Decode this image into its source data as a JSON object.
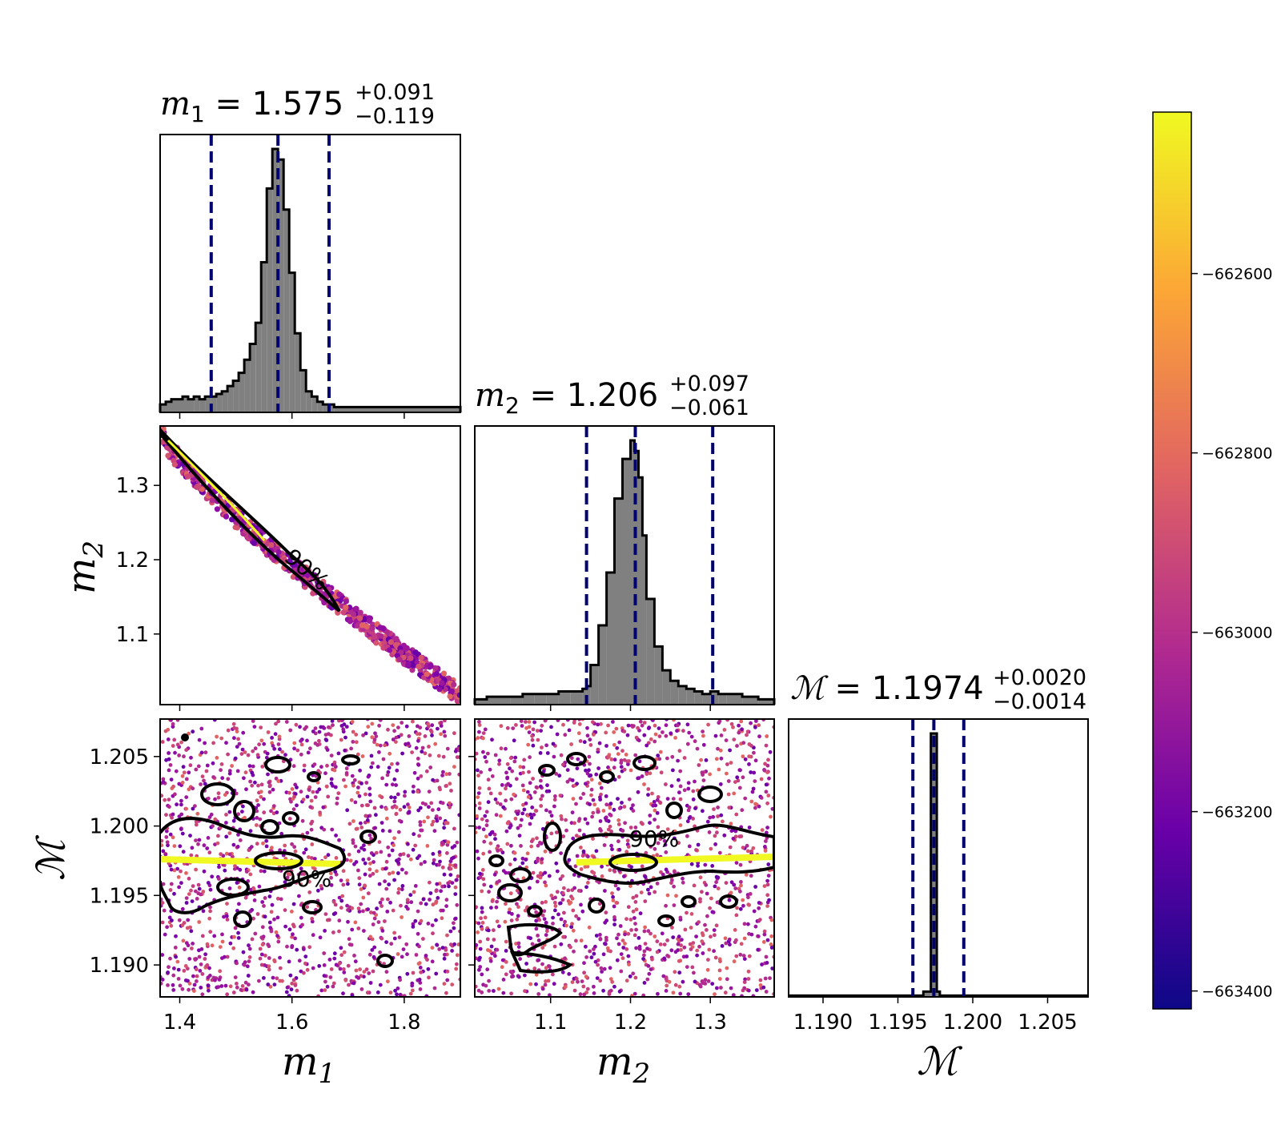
{
  "figure": {
    "colorbar": {
      "tick_labels": [
        "−662600",
        "−662800",
        "−663000",
        "−663200",
        "−663400"
      ],
      "tick_values": [
        -662600,
        -662800,
        -663000,
        -663200,
        -663400
      ],
      "range": [
        -663420,
        -662420
      ],
      "colormap": "plasma",
      "colors": [
        "#0d0887",
        "#6a00a8",
        "#b12a90",
        "#e16462",
        "#fca636",
        "#f0f921"
      ]
    },
    "params": [
      {
        "symbol": "m",
        "sub": "1",
        "median": "1.575",
        "plus": "+0.091",
        "minus": "−0.119",
        "axis_label": "m",
        "axis_sub": "1"
      },
      {
        "symbol": "m",
        "sub": "2",
        "median": "1.206",
        "plus": "+0.097",
        "minus": "−0.061",
        "axis_label": "m",
        "axis_sub": "2"
      },
      {
        "symbol": "ℳ",
        "sub": "",
        "median": "1.1974",
        "plus": "+0.0020",
        "minus": "−0.0014",
        "axis_label": "ℳ",
        "axis_sub": ""
      }
    ],
    "equals": "=",
    "contour_label": "90%",
    "tick_labels": {
      "m1": [
        "1.4",
        "1.6",
        "1.8"
      ],
      "m2_x": [
        "1.1",
        "1.2",
        "1.3"
      ],
      "m2_y": [
        "1.3",
        "1.2",
        "1.1"
      ],
      "chirp_x": [
        "1.190",
        "1.195",
        "1.200",
        "1.205"
      ],
      "chirp_y": [
        "1.205",
        "1.200",
        "1.195",
        "1.190"
      ]
    },
    "quantile_line_color": "#00006e",
    "hist_fill_color": "#808080"
  },
  "chart_data": {
    "type": "scatter",
    "subtype": "corner plot",
    "parameters": [
      "m1",
      "m2",
      "chirp_mass"
    ],
    "axis_ranges": {
      "m1": [
        1.365,
        1.9
      ],
      "m2": [
        1.005,
        1.38
      ],
      "chirp_mass": [
        1.1877,
        1.2077
      ]
    },
    "summaries": {
      "m1": {
        "median": 1.575,
        "upper": 1.666,
        "lower": 1.456
      },
      "m2": {
        "median": 1.206,
        "upper": 1.303,
        "lower": 1.145
      },
      "chirp_mass": {
        "median": 1.1974,
        "upper": 1.1994,
        "lower": 1.196
      }
    },
    "histograms": {
      "m1": {
        "bin_edges": [
          1.365,
          1.375,
          1.385,
          1.395,
          1.405,
          1.415,
          1.425,
          1.435,
          1.445,
          1.455,
          1.465,
          1.475,
          1.485,
          1.495,
          1.505,
          1.515,
          1.525,
          1.535,
          1.545,
          1.555,
          1.565,
          1.575,
          1.585,
          1.595,
          1.605,
          1.615,
          1.625,
          1.635,
          1.645,
          1.655,
          1.665,
          1.675,
          1.9
        ],
        "heights": [
          0.03,
          0.04,
          0.05,
          0.05,
          0.06,
          0.05,
          0.06,
          0.05,
          0.06,
          0.06,
          0.07,
          0.08,
          0.1,
          0.12,
          0.15,
          0.2,
          0.26,
          0.34,
          0.57,
          0.85,
          1.0,
          0.96,
          0.77,
          0.53,
          0.3,
          0.16,
          0.08,
          0.06,
          0.04,
          0.03,
          0.03,
          0.02
        ]
      },
      "m2": {
        "bin_edges": [
          1.005,
          1.02,
          1.035,
          1.05,
          1.065,
          1.08,
          1.095,
          1.11,
          1.125,
          1.14,
          1.145,
          1.15,
          1.16,
          1.17,
          1.18,
          1.19,
          1.2,
          1.205,
          1.21,
          1.215,
          1.22,
          1.23,
          1.24,
          1.25,
          1.26,
          1.27,
          1.28,
          1.29,
          1.3,
          1.31,
          1.32,
          1.34,
          1.36,
          1.38
        ],
        "heights": [
          0.02,
          0.03,
          0.03,
          0.03,
          0.04,
          0.04,
          0.04,
          0.05,
          0.05,
          0.06,
          0.07,
          0.15,
          0.3,
          0.5,
          0.78,
          0.93,
          1.0,
          0.96,
          0.86,
          0.64,
          0.4,
          0.22,
          0.13,
          0.09,
          0.07,
          0.06,
          0.05,
          0.04,
          0.05,
          0.04,
          0.04,
          0.03,
          0.02
        ]
      },
      "chirp_mass": {
        "bin_edges": [
          1.1877,
          1.1967,
          1.1972,
          1.1976,
          1.1978,
          1.2077
        ],
        "heights": [
          0.005,
          0.02,
          1.0,
          0.02,
          0.005
        ]
      }
    },
    "scatter_panels": [
      "m1-m2",
      "m1-chirp_mass",
      "m2-chirp_mass"
    ],
    "color_variable_range": [
      -663420,
      -662420
    ]
  }
}
